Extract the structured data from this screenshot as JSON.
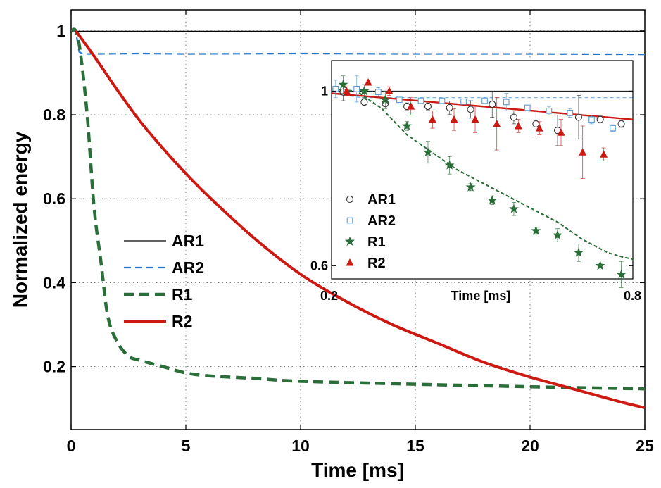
{
  "chart_data": {
    "main": {
      "type": "line",
      "xlabel": "Time [ms]",
      "ylabel": "Normalized energy",
      "xlim": [
        0,
        25
      ],
      "ylim": [
        0.05,
        1.05
      ],
      "xticks": [
        "0",
        "5",
        "10",
        "15",
        "20",
        "25"
      ],
      "yticks": [
        "0.2",
        "0.4",
        "0.6",
        "0.8",
        "1"
      ],
      "grid": true,
      "legend_position": "center-left",
      "series": [
        {
          "name": "AR1",
          "color": "#000000",
          "style": "solid-thin",
          "x": [
            0,
            0.2,
            25
          ],
          "y": [
            1.0,
            0.999,
            0.999
          ]
        },
        {
          "name": "AR2",
          "color": "#1f77d0",
          "style": "dashed",
          "x": [
            0,
            0.2,
            0.35,
            0.5,
            1,
            3,
            5,
            10,
            15,
            20,
            25
          ],
          "y": [
            1.0,
            1.0,
            0.95,
            0.945,
            0.945,
            0.946,
            0.945,
            0.946,
            0.945,
            0.945,
            0.944
          ]
        },
        {
          "name": "R1",
          "color": "#2a6e3a",
          "style": "dashed-thick",
          "x": [
            0,
            0.2,
            0.4,
            0.7,
            1.0,
            1.3,
            1.6,
            2.0,
            2.5,
            3.0,
            4.0,
            5.0,
            6.0,
            8.0,
            10.0,
            15.0,
            20.0,
            25.0
          ],
          "y": [
            1.0,
            1.0,
            0.95,
            0.8,
            0.58,
            0.45,
            0.32,
            0.26,
            0.225,
            0.215,
            0.2,
            0.185,
            0.178,
            0.172,
            0.165,
            0.158,
            0.152,
            0.147
          ]
        },
        {
          "name": "R2",
          "color": "#cc1a12",
          "style": "solid-thick",
          "x": [
            0.2,
            1,
            2,
            3,
            4,
            5,
            6,
            8,
            10,
            12,
            14,
            16,
            18,
            20,
            22,
            24,
            25
          ],
          "y": [
            1.0,
            0.94,
            0.86,
            0.785,
            0.72,
            0.66,
            0.605,
            0.505,
            0.42,
            0.355,
            0.3,
            0.255,
            0.21,
            0.175,
            0.145,
            0.115,
            0.102
          ]
        }
      ]
    },
    "inset": {
      "type": "scatter",
      "xlabel": "Time [ms]",
      "xlim": [
        0.2,
        0.8
      ],
      "ylim": [
        0.57,
        1.07
      ],
      "xticks": [
        "0.2",
        "0.8"
      ],
      "yticks": [
        "0.6",
        "1"
      ],
      "legend_position": "bottom-left",
      "lines": [
        {
          "name": "AR1",
          "color": "#000000",
          "x": [
            0.2,
            0.8
          ],
          "y": [
            1.0,
            1.0
          ]
        },
        {
          "name": "AR2",
          "color": "#6fa8dc",
          "x": [
            0.2,
            0.26,
            0.8
          ],
          "y": [
            0.995,
            0.985,
            0.985
          ]
        },
        {
          "name": "R2",
          "color": "#cc1a12",
          "x": [
            0.2,
            0.8
          ],
          "y": [
            0.995,
            0.935
          ]
        },
        {
          "name": "R1",
          "color": "#2a6e3a",
          "x": [
            0.2,
            0.25,
            0.3,
            0.35,
            0.4,
            0.45,
            0.5,
            0.55,
            0.6,
            0.65,
            0.7,
            0.75,
            0.78,
            0.8
          ],
          "y": [
            1.005,
            1.0,
            0.96,
            0.9,
            0.86,
            0.82,
            0.79,
            0.76,
            0.73,
            0.7,
            0.66,
            0.63,
            0.62,
            0.615
          ]
        }
      ],
      "series": [
        {
          "name": "AR1",
          "marker": "circle",
          "color": "#333333",
          "x": [
            0.223,
            0.265,
            0.307,
            0.35,
            0.392,
            0.435,
            0.477,
            0.52,
            0.563,
            0.607,
            0.65,
            0.692,
            0.735,
            0.777
          ],
          "y": [
            0.998,
            0.975,
            0.972,
            0.965,
            0.965,
            0.962,
            0.958,
            0.97,
            0.94,
            0.925,
            0.91,
            0.94,
            0.935,
            0.925
          ],
          "err": [
            0.02,
            0.008,
            0.008,
            0.008,
            0.008,
            0.015,
            0.02,
            0.03,
            0.015,
            0.03,
            0.035,
            0.05,
            0.008,
            0.008
          ]
        },
        {
          "name": "AR2",
          "marker": "square",
          "color": "#5b9bd5",
          "x": [
            0.208,
            0.25,
            0.293,
            0.335,
            0.378,
            0.42,
            0.463,
            0.505,
            0.548,
            0.59,
            0.633,
            0.675,
            0.718,
            0.76
          ],
          "y": [
            1.005,
            1.005,
            0.998,
            0.98,
            0.978,
            0.978,
            0.976,
            0.978,
            0.975,
            0.962,
            0.955,
            0.95,
            0.935,
            0.915
          ],
          "err": [
            0.02,
            0.03,
            0.01,
            0.005,
            0.005,
            0.005,
            0.005,
            0.005,
            0.02,
            0.005,
            0.01,
            0.01,
            0.01,
            0.008
          ]
        },
        {
          "name": "R1",
          "marker": "star",
          "color": "#2a6e3a",
          "x": [
            0.223,
            0.265,
            0.307,
            0.35,
            0.392,
            0.435,
            0.477,
            0.52,
            0.563,
            0.607,
            0.65,
            0.692,
            0.735,
            0.777
          ],
          "y": [
            1.015,
            1.0,
            0.98,
            0.92,
            0.86,
            0.83,
            0.78,
            0.75,
            0.73,
            0.68,
            0.67,
            0.63,
            0.6,
            0.58
          ],
          "err": [
            0.02,
            0.015,
            0.02,
            0.01,
            0.025,
            0.02,
            0.008,
            0.01,
            0.015,
            0.008,
            0.015,
            0.02,
            0.004,
            0.03
          ]
        },
        {
          "name": "R2",
          "marker": "triangle",
          "color": "#cc1a12",
          "x": [
            0.23,
            0.273,
            0.315,
            0.358,
            0.401,
            0.444,
            0.486,
            0.529,
            0.572,
            0.614,
            0.657,
            0.7,
            0.742
          ],
          "y": [
            1.0,
            1.02,
            1.0,
            0.965,
            0.935,
            0.935,
            0.935,
            0.925,
            0.92,
            0.915,
            0.905,
            0.86,
            0.855
          ],
          "err": [
            0.01,
            0.005,
            0.01,
            0.02,
            0.02,
            0.025,
            0.03,
            0.06,
            0.015,
            0.015,
            0.03,
            0.06,
            0.015
          ]
        }
      ]
    }
  }
}
